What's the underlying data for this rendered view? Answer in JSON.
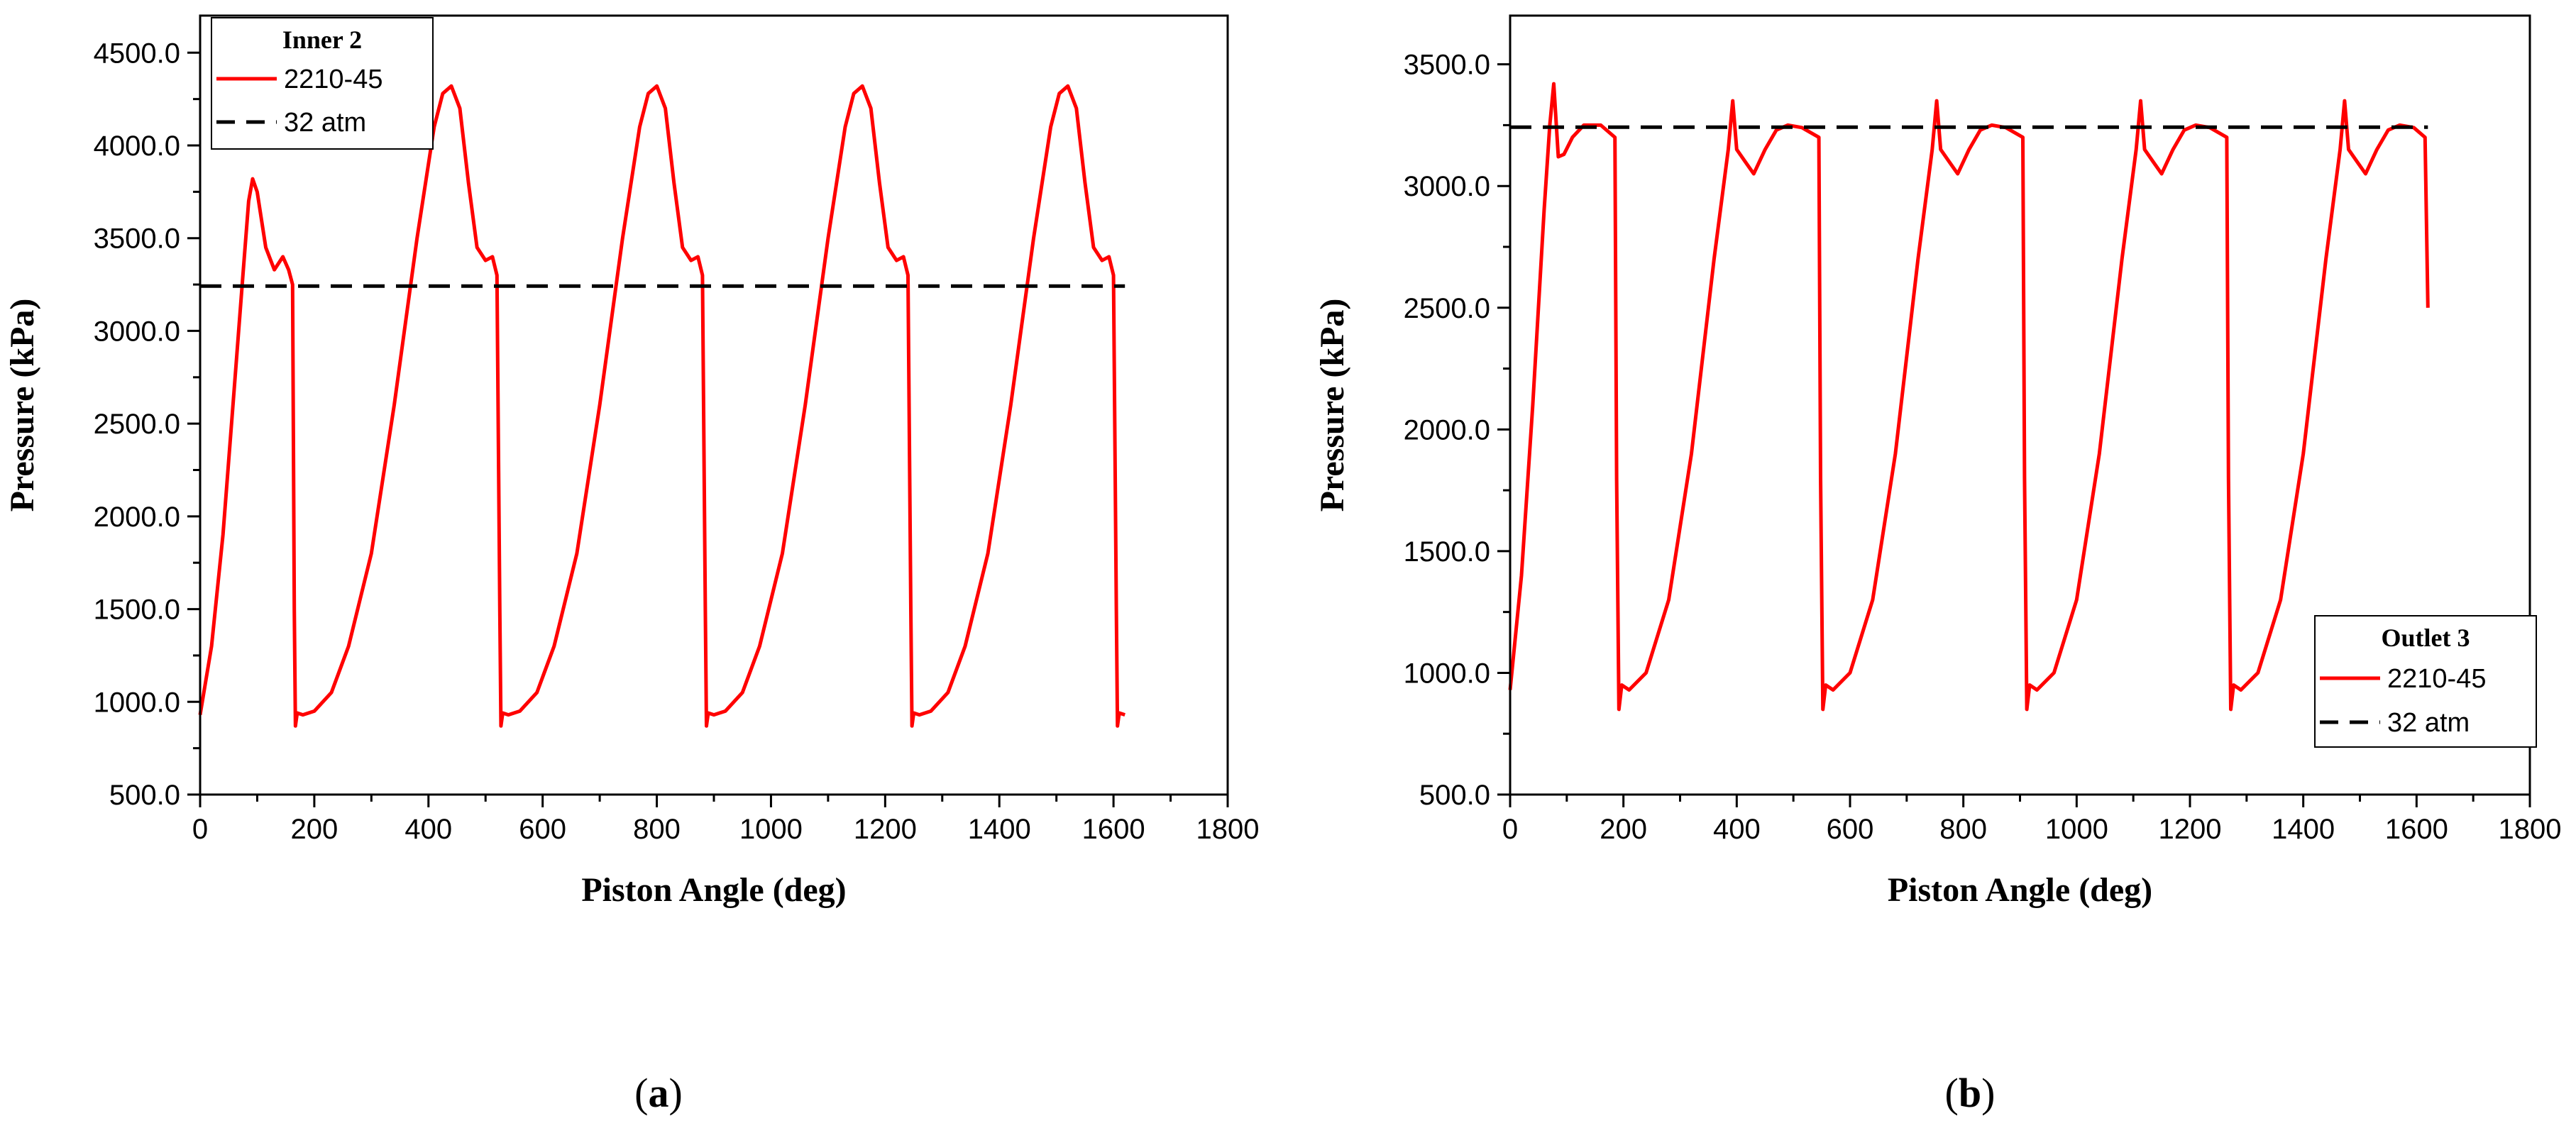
{
  "chart_data": [
    {
      "type": "line",
      "panel_label_open": "(",
      "panel_label_letter": "a",
      "panel_label_close": ")",
      "xlabel": "Piston Angle (deg)",
      "ylabel": "Pressure (kPa)",
      "xlim": [
        0,
        1800
      ],
      "ylim": [
        500,
        4700
      ],
      "xticks": [
        "0",
        "200",
        "400",
        "600",
        "800",
        "1000",
        "1200",
        "1400",
        "1600",
        "1800"
      ],
      "yticks": [
        "500.0",
        "1000.0",
        "1500.0",
        "2000.0",
        "2500.0",
        "3000.0",
        "3500.0",
        "4000.0",
        "4500.0"
      ],
      "grid": false,
      "legend": {
        "position": "top-left",
        "title": "Inner 2",
        "entries": [
          "2210-45",
          "32 atm"
        ]
      },
      "series": [
        {
          "name": "2210-45",
          "color": "#ff0000",
          "style": "solid",
          "x": [
            0,
            20,
            40,
            60,
            75,
            85,
            92,
            100,
            115,
            130,
            145,
            155,
            162,
            165,
            167,
            170,
            180,
            200,
            230,
            260,
            300,
            340,
            380,
            410,
            425,
            440,
            455,
            470,
            485,
            500,
            512,
            520,
            525,
            527,
            530,
            540,
            560,
            590,
            620,
            660,
            700,
            740,
            770,
            785,
            800,
            815,
            830,
            845,
            860,
            872,
            880,
            885,
            887,
            890,
            900,
            920,
            950,
            980,
            1020,
            1060,
            1100,
            1130,
            1145,
            1160,
            1175,
            1190,
            1205,
            1220,
            1232,
            1240,
            1245,
            1247,
            1250,
            1260,
            1280,
            1310,
            1340,
            1380,
            1420,
            1460,
            1490,
            1505,
            1520,
            1535,
            1550,
            1565,
            1580,
            1592,
            1600,
            1605,
            1607,
            1610,
            1620
          ],
          "y": [
            930,
            1300,
            1900,
            2700,
            3300,
            3700,
            3820,
            3750,
            3450,
            3330,
            3400,
            3330,
            3250,
            1500,
            870,
            940,
            930,
            950,
            1050,
            1300,
            1800,
            2600,
            3500,
            4100,
            4280,
            4320,
            4200,
            3800,
            3450,
            3380,
            3400,
            3300,
            1500,
            870,
            940,
            930,
            950,
            1050,
            1300,
            1800,
            2600,
            3500,
            4100,
            4280,
            4320,
            4200,
            3800,
            3450,
            3380,
            3400,
            3300,
            1500,
            870,
            940,
            930,
            950,
            1050,
            1300,
            1800,
            2600,
            3500,
            4100,
            4280,
            4320,
            4200,
            3800,
            3450,
            3380,
            3400,
            3300,
            1500,
            870,
            940,
            930,
            950,
            1050,
            1300,
            1800,
            2600,
            3500,
            4100,
            4280,
            4320,
            4200,
            3800,
            3450,
            3380,
            3400,
            3300,
            1500,
            870,
            940,
            930
          ]
        },
        {
          "name": "32 atm",
          "color": "#000000",
          "style": "dashed",
          "x": [
            0,
            1620
          ],
          "y": [
            3242,
            3242
          ]
        }
      ]
    },
    {
      "type": "line",
      "panel_label_open": "(",
      "panel_label_letter": "b",
      "panel_label_close": ")",
      "xlabel": "Piston Angle (deg)",
      "ylabel": "Pressure (kPa)",
      "xlim": [
        0,
        1800
      ],
      "ylim": [
        500,
        3700
      ],
      "xticks": [
        "0",
        "200",
        "400",
        "600",
        "800",
        "1000",
        "1200",
        "1400",
        "1600",
        "1800"
      ],
      "yticks": [
        "500.0",
        "1000.0",
        "1500.0",
        "2000.0",
        "2500.0",
        "3000.0",
        "3500.0"
      ],
      "grid": false,
      "legend": {
        "position": "bottom-right",
        "title": "Outlet 3",
        "entries": [
          "2210-45",
          "32 atm"
        ]
      },
      "series": [
        {
          "name": "2210-45",
          "color": "#ff0000",
          "style": "solid",
          "x": [
            0,
            20,
            40,
            60,
            70,
            77,
            85,
            95,
            110,
            130,
            160,
            185,
            188,
            192,
            197,
            210,
            240,
            280,
            320,
            360,
            385,
            393,
            400,
            415,
            430,
            450,
            470,
            490,
            515,
            545,
            548,
            552,
            557,
            570,
            600,
            640,
            680,
            720,
            745,
            753,
            760,
            775,
            790,
            810,
            830,
            850,
            875,
            905,
            908,
            912,
            917,
            930,
            960,
            1000,
            1040,
            1080,
            1105,
            1113,
            1120,
            1135,
            1150,
            1170,
            1190,
            1210,
            1235,
            1265,
            1268,
            1272,
            1277,
            1290,
            1320,
            1360,
            1400,
            1440,
            1465,
            1473,
            1480,
            1495,
            1510,
            1530,
            1550,
            1570,
            1595,
            1615,
            1620
          ],
          "y": [
            930,
            1400,
            2100,
            2900,
            3250,
            3420,
            3120,
            3130,
            3200,
            3250,
            3250,
            3200,
            1800,
            850,
            950,
            930,
            1000,
            1300,
            1900,
            2700,
            3150,
            3350,
            3150,
            3100,
            3050,
            3150,
            3230,
            3250,
            3240,
            3200,
            1800,
            850,
            950,
            930,
            1000,
            1300,
            1900,
            2700,
            3150,
            3350,
            3150,
            3100,
            3050,
            3150,
            3230,
            3250,
            3240,
            3200,
            1800,
            850,
            950,
            930,
            1000,
            1300,
            1900,
            2700,
            3150,
            3350,
            3150,
            3100,
            3050,
            3150,
            3230,
            3250,
            3240,
            3200,
            1800,
            850,
            950,
            930,
            1000,
            1300,
            1900,
            2700,
            3150,
            3350,
            3150,
            3100,
            3050,
            3150,
            3230,
            3250,
            3240,
            3200,
            2500
          ]
        },
        {
          "name": "32 atm",
          "color": "#000000",
          "style": "dashed",
          "x": [
            0,
            1620
          ],
          "y": [
            3242,
            3242
          ]
        }
      ]
    }
  ]
}
